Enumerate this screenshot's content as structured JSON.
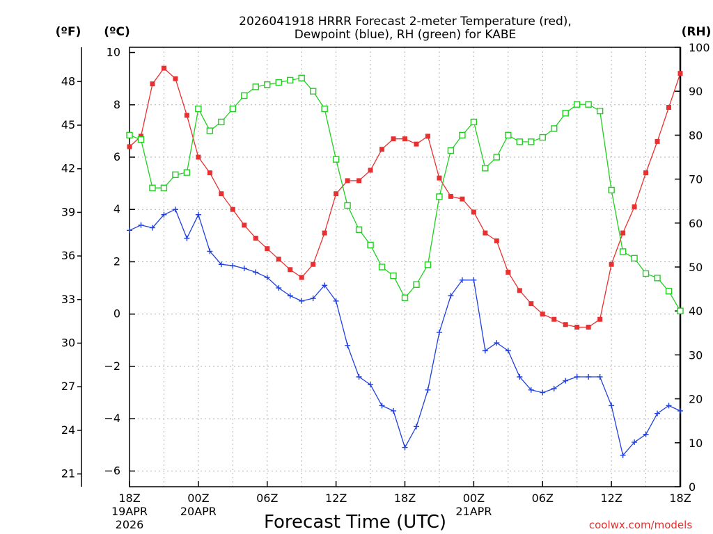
{
  "chart_data": {
    "type": "line",
    "title_line1": "2026041918 HRRR Forecast 2-meter Temperature (red),",
    "title_line2": "Dewpoint (blue), RH (green) for KABE",
    "units": {
      "fahrenheit": "(ºF)",
      "celsius": "(ºC)",
      "rh": "(RH)"
    },
    "xlabel": "Forecast Time (UTC)",
    "credit": "coolwx.com/models",
    "x_range_hours": [
      0,
      48
    ],
    "celsius_range": [
      -6.6,
      10.2
    ],
    "rh_range": [
      0,
      100
    ],
    "celsius_ticks": [
      "10",
      "8",
      "6",
      "4",
      "2",
      "0",
      "−2",
      "−4",
      "−6"
    ],
    "celsius_tick_values": [
      10,
      8,
      6,
      4,
      2,
      0,
      -2,
      -4,
      -6
    ],
    "fahrenheit_ticks": [
      "48",
      "45",
      "42",
      "39",
      "36",
      "33",
      "30",
      "27",
      "24",
      "21"
    ],
    "fahrenheit_tick_values": [
      48,
      45,
      42,
      39,
      36,
      33,
      30,
      27,
      24,
      21
    ],
    "rh_ticks": [
      "100",
      "90",
      "80",
      "70",
      "60",
      "50",
      "40",
      "30",
      "20",
      "10",
      "0"
    ],
    "rh_tick_values": [
      100,
      90,
      80,
      70,
      60,
      50,
      40,
      30,
      20,
      10,
      0
    ],
    "x_ticks": [
      {
        "hour": 0,
        "label": "18Z",
        "date": "19APR",
        "year": "2026"
      },
      {
        "hour": 6,
        "label": "00Z",
        "date": "20APR",
        "year": ""
      },
      {
        "hour": 12,
        "label": "06Z",
        "date": "",
        "year": ""
      },
      {
        "hour": 18,
        "label": "12Z",
        "date": "",
        "year": ""
      },
      {
        "hour": 24,
        "label": "18Z",
        "date": "",
        "year": ""
      },
      {
        "hour": 30,
        "label": "00Z",
        "date": "21APR",
        "year": ""
      },
      {
        "hour": 36,
        "label": "06Z",
        "date": "",
        "year": ""
      },
      {
        "hour": 42,
        "label": "12Z",
        "date": "",
        "year": ""
      },
      {
        "hour": 48,
        "label": "18Z",
        "date": "",
        "year": ""
      }
    ],
    "series": [
      {
        "name": "2-meter Temperature",
        "axis": "celsius",
        "color": "#e83030",
        "marker": "filled-square",
        "values": [
          6.4,
          6.8,
          8.8,
          9.4,
          9.0,
          7.6,
          6.0,
          5.4,
          4.6,
          4.0,
          3.4,
          2.9,
          2.5,
          2.1,
          1.7,
          1.4,
          1.9,
          3.1,
          4.6,
          5.1,
          5.1,
          5.5,
          6.3,
          6.7,
          6.7,
          6.5,
          6.8,
          5.2,
          4.5,
          4.4,
          3.9,
          3.1,
          2.8,
          1.6,
          0.9,
          0.4,
          0.0,
          -0.2,
          -0.4,
          -0.5,
          -0.5,
          -0.2,
          1.9,
          3.1,
          4.1,
          5.4,
          6.6,
          7.9,
          9.2
        ]
      },
      {
        "name": "Dewpoint",
        "axis": "celsius",
        "color": "#2040e0",
        "marker": "plus",
        "values": [
          3.2,
          3.4,
          3.3,
          3.8,
          4.0,
          2.9,
          3.8,
          2.4,
          1.9,
          1.85,
          1.75,
          1.6,
          1.4,
          1.0,
          0.7,
          0.5,
          0.6,
          1.1,
          0.5,
          -1.2,
          -2.4,
          -2.7,
          -3.5,
          -3.7,
          -5.1,
          -4.3,
          -2.9,
          -0.7,
          0.7,
          1.3,
          1.3,
          -1.4,
          -1.1,
          -1.4,
          -2.4,
          -2.9,
          -3.0,
          -2.85,
          -2.55,
          -2.4,
          -2.4,
          -2.4,
          -3.5,
          -5.4,
          -4.9,
          -4.6,
          -3.8,
          -3.5,
          -3.7
        ]
      },
      {
        "name": "RH",
        "axis": "rh",
        "color": "#20d020",
        "marker": "open-square",
        "values": [
          80,
          79,
          68,
          68,
          71,
          71.5,
          86,
          81,
          83,
          86,
          89,
          91,
          91.5,
          92,
          92.5,
          93,
          90,
          86,
          74.5,
          64,
          58.5,
          55,
          50,
          48,
          43,
          46,
          50.5,
          66,
          76.5,
          80,
          83,
          72.5,
          75,
          80,
          78.5,
          78.5,
          79.5,
          81.5,
          85,
          87,
          87,
          85.5,
          67.5,
          53.5,
          52,
          48.5,
          47.5,
          44.5,
          40
        ]
      }
    ]
  }
}
